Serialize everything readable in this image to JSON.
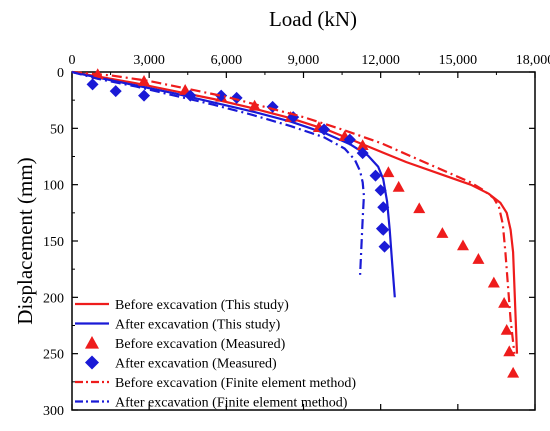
{
  "chart_data": {
    "type": "line",
    "xlabel": "Load (kN)",
    "ylabel": "Displacement (mm)",
    "xlim": [
      0,
      18000
    ],
    "ylim": [
      0,
      300
    ],
    "x_axis_position": "top",
    "y_axis_inverted": true,
    "grid": false,
    "legend_placement": "bottom-left",
    "xticks": [
      0,
      3000,
      6000,
      9000,
      12000,
      15000,
      18000
    ],
    "xtick_labels": [
      "0",
      "3,000",
      "6,000",
      "9,000",
      "12,000",
      "15,000",
      "18,000"
    ],
    "yticks": [
      0,
      50,
      100,
      150,
      200,
      250,
      300
    ],
    "ytick_labels": [
      "0",
      "50",
      "100",
      "150",
      "200",
      "250",
      "300"
    ],
    "series": [
      {
        "name": "Before excavation (This study)",
        "style": "solid",
        "marker": "none",
        "color": "#ee1c1c",
        "x": [
          0,
          1000,
          2500,
          4000,
          5500,
          7000,
          8500,
          10000,
          11500,
          13000,
          14500,
          15500,
          16200,
          16650,
          16900,
          17050,
          17150,
          17200,
          17250,
          17300
        ],
        "y": [
          0,
          4,
          10,
          17,
          24,
          32,
          41,
          52,
          66,
          80,
          92,
          100,
          108,
          116,
          125,
          140,
          160,
          190,
          220,
          250
        ]
      },
      {
        "name": "After excavation (This study)",
        "style": "solid",
        "marker": "none",
        "color": "#1a1ad6",
        "x": [
          0,
          1000,
          2500,
          4000,
          5500,
          7000,
          8500,
          9800,
          10800,
          11500,
          11900,
          12100,
          12250,
          12350,
          12450,
          12550
        ],
        "y": [
          0,
          5,
          12,
          19,
          27,
          35,
          44,
          54,
          64,
          74,
          84,
          95,
          115,
          140,
          170,
          200
        ]
      },
      {
        "name": "Before excavation (Measured)",
        "style": "none",
        "marker": "triangle",
        "color": "#ee1c1c",
        "x": [
          1000,
          2800,
          4400,
          5800,
          7100,
          8500,
          9600,
          10600,
          11300,
          12300,
          12700,
          13500,
          14400,
          15200,
          15800,
          16400,
          16800,
          16900,
          17000,
          17150
        ],
        "y": [
          2,
          8,
          16,
          22,
          30,
          40,
          49,
          57,
          65,
          89,
          102,
          121,
          143,
          154,
          166,
          187,
          205,
          229,
          248,
          267
        ]
      },
      {
        "name": "After excavation (Measured)",
        "style": "none",
        "marker": "diamond",
        "color": "#1a1ad6",
        "x": [
          800,
          1700,
          2800,
          4600,
          5800,
          6400,
          7800,
          8600,
          9800,
          10800,
          11300,
          11800,
          12000,
          12100,
          12050,
          12100,
          12150
        ],
        "y": [
          11,
          17,
          21,
          21,
          21,
          23,
          31,
          40,
          51,
          60,
          72,
          92,
          105,
          120,
          139,
          140,
          155
        ]
      },
      {
        "name": "Before excavation (Finite element method)",
        "style": "dashdot",
        "marker": "none",
        "color": "#ee1c1c",
        "x": [
          0,
          1500,
          3000,
          4500,
          6000,
          7500,
          9000,
          10500,
          12000,
          13500,
          14700,
          15500,
          16000,
          16400,
          16600,
          16750,
          16850,
          16950,
          17050,
          17200
        ],
        "y": [
          0,
          3,
          8,
          15,
          22,
          31,
          40,
          51,
          63,
          78,
          90,
          98,
          105,
          112,
          120,
          135,
          160,
          190,
          220,
          250
        ]
      },
      {
        "name": "After excavation (Finite element method)",
        "style": "dashdot",
        "marker": "none",
        "color": "#1a1ad6",
        "x": [
          0,
          1000,
          2500,
          4000,
          5500,
          7000,
          8500,
          9800,
          10600,
          11000,
          11200,
          11300,
          11350,
          11300,
          11250,
          11200
        ],
        "y": [
          0,
          6,
          13,
          21,
          29,
          38,
          48,
          58,
          68,
          78,
          88,
          98,
          110,
          130,
          155,
          180
        ]
      }
    ]
  }
}
